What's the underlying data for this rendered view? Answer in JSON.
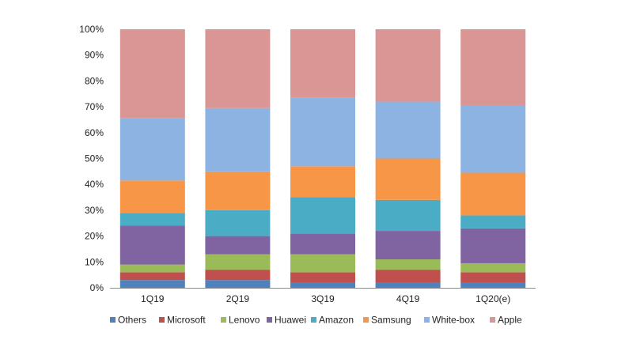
{
  "chart_data": {
    "type": "bar",
    "stacked": true,
    "normalized": true,
    "categories": [
      "1Q19",
      "2Q19",
      "3Q19",
      "4Q19",
      "1Q20(e)"
    ],
    "y_axis": {
      "ylim": [
        0,
        100
      ],
      "ticks": [
        0,
        10,
        20,
        30,
        40,
        50,
        60,
        70,
        80,
        90,
        100
      ],
      "tick_labels": [
        "0%",
        "10%",
        "20%",
        "30%",
        "40%",
        "50%",
        "60%",
        "70%",
        "80%",
        "90%",
        "100%"
      ]
    },
    "grid": false,
    "legend_position": "bottom",
    "series": [
      {
        "name": "Others",
        "color": "#4f81bd",
        "values": [
          3,
          3,
          2,
          2,
          2
        ]
      },
      {
        "name": "Microsoft",
        "color": "#c0504d",
        "values": [
          3,
          4,
          4,
          5,
          4
        ]
      },
      {
        "name": "Lenovo",
        "color": "#9bbb59",
        "values": [
          3,
          6,
          7,
          4,
          3.5
        ]
      },
      {
        "name": "Huawei",
        "color": "#8064a2",
        "values": [
          15,
          7,
          8,
          11,
          13.5
        ]
      },
      {
        "name": "Amazon",
        "color": "#4bacc6",
        "values": [
          5,
          10,
          14,
          12,
          5
        ]
      },
      {
        "name": "Samsung",
        "color": "#f79646",
        "values": [
          12.5,
          15,
          12,
          16,
          16.5
        ]
      },
      {
        "name": "White-box",
        "color": "#8db3e2",
        "values": [
          24,
          24.5,
          26.5,
          22,
          26
        ]
      },
      {
        "name": "Apple",
        "color": "#d99694",
        "values": [
          34.5,
          30.5,
          26.5,
          28,
          29.5
        ]
      }
    ]
  }
}
